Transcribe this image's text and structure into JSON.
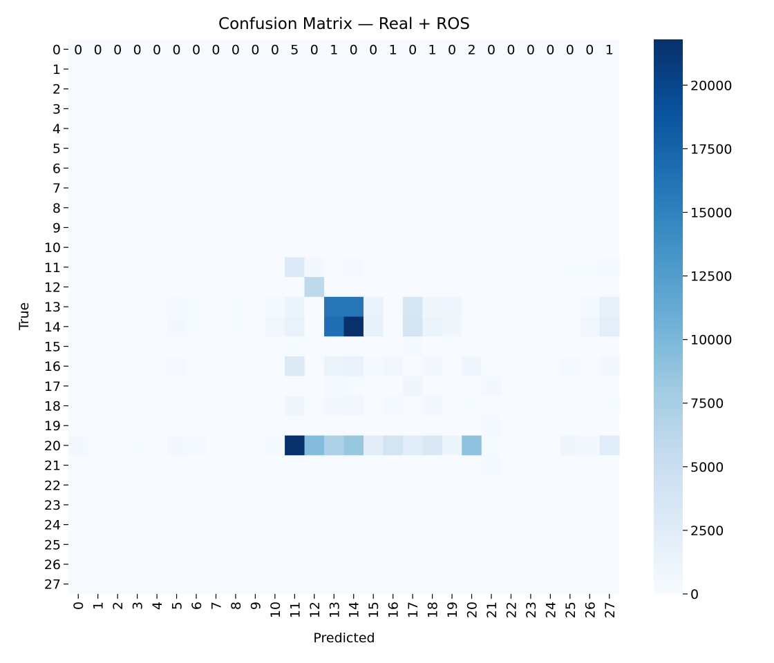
{
  "chart_data": {
    "type": "heatmap",
    "title": "Confusion Matrix — Real + ROS",
    "xlabel": "Predicted",
    "ylabel": "True",
    "x_ticks": [
      "0",
      "1",
      "2",
      "3",
      "4",
      "5",
      "6",
      "7",
      "8",
      "9",
      "10",
      "11",
      "12",
      "13",
      "14",
      "15",
      "16",
      "17",
      "18",
      "19",
      "20",
      "21",
      "22",
      "23",
      "24",
      "25",
      "26",
      "27"
    ],
    "y_ticks": [
      "0",
      "1",
      "2",
      "3",
      "4",
      "5",
      "6",
      "7",
      "8",
      "9",
      "10",
      "11",
      "12",
      "13",
      "14",
      "15",
      "16",
      "17",
      "18",
      "19",
      "20",
      "21",
      "22",
      "23",
      "24",
      "25",
      "26",
      "27"
    ],
    "colormap": "Blues",
    "color_range": [
      0,
      21800
    ],
    "colorbar_ticks": [
      "0",
      "2500",
      "5000",
      "7500",
      "10000",
      "12500",
      "15000",
      "17500",
      "20000"
    ],
    "annotations_row0": [
      "0",
      "0",
      "0",
      "0",
      "0",
      "0",
      "0",
      "0",
      "0",
      "0",
      "0",
      "5",
      "0",
      "1",
      "0",
      "0",
      "1",
      "0",
      "1",
      "0",
      "2",
      "0",
      "0",
      "0",
      "0",
      "0",
      "0",
      "1"
    ],
    "values": [
      [
        0,
        0,
        0,
        0,
        0,
        0,
        0,
        0,
        0,
        0,
        0,
        5,
        0,
        1,
        0,
        0,
        1,
        0,
        1,
        0,
        2,
        0,
        0,
        0,
        0,
        0,
        0,
        1
      ],
      [
        0,
        0,
        0,
        0,
        0,
        0,
        0,
        0,
        0,
        0,
        0,
        0,
        0,
        0,
        0,
        0,
        0,
        0,
        0,
        0,
        0,
        0,
        0,
        0,
        0,
        0,
        0,
        0
      ],
      [
        0,
        0,
        0,
        0,
        0,
        0,
        0,
        0,
        0,
        0,
        0,
        0,
        0,
        0,
        0,
        0,
        0,
        0,
        0,
        0,
        0,
        0,
        0,
        0,
        0,
        0,
        0,
        0
      ],
      [
        0,
        0,
        0,
        0,
        0,
        0,
        0,
        0,
        0,
        0,
        0,
        0,
        0,
        0,
        0,
        0,
        0,
        0,
        0,
        0,
        0,
        0,
        0,
        0,
        0,
        0,
        0,
        0
      ],
      [
        0,
        0,
        0,
        0,
        0,
        0,
        0,
        0,
        0,
        0,
        0,
        0,
        0,
        0,
        0,
        0,
        0,
        0,
        0,
        0,
        0,
        0,
        0,
        0,
        0,
        0,
        0,
        0
      ],
      [
        0,
        0,
        0,
        0,
        0,
        0,
        0,
        0,
        0,
        0,
        0,
        0,
        0,
        0,
        0,
        0,
        0,
        0,
        0,
        0,
        0,
        0,
        0,
        0,
        0,
        0,
        0,
        0
      ],
      [
        0,
        0,
        0,
        0,
        0,
        0,
        0,
        0,
        0,
        0,
        0,
        0,
        0,
        0,
        0,
        0,
        0,
        0,
        0,
        0,
        0,
        0,
        0,
        0,
        0,
        0,
        0,
        0
      ],
      [
        0,
        0,
        0,
        0,
        0,
        0,
        0,
        0,
        0,
        0,
        0,
        0,
        0,
        0,
        0,
        0,
        0,
        0,
        0,
        0,
        0,
        0,
        0,
        0,
        0,
        0,
        0,
        0
      ],
      [
        0,
        0,
        0,
        0,
        0,
        0,
        0,
        0,
        0,
        0,
        0,
        0,
        0,
        0,
        0,
        0,
        0,
        0,
        0,
        0,
        0,
        0,
        0,
        0,
        0,
        0,
        0,
        0
      ],
      [
        0,
        0,
        0,
        0,
        0,
        0,
        0,
        0,
        0,
        0,
        0,
        0,
        0,
        0,
        0,
        0,
        0,
        0,
        0,
        0,
        0,
        0,
        0,
        0,
        0,
        0,
        0,
        0
      ],
      [
        0,
        0,
        0,
        0,
        0,
        0,
        0,
        0,
        0,
        0,
        0,
        0,
        0,
        0,
        0,
        0,
        0,
        0,
        0,
        0,
        0,
        0,
        0,
        0,
        0,
        0,
        0,
        0
      ],
      [
        0,
        0,
        0,
        0,
        0,
        0,
        0,
        0,
        0,
        0,
        0,
        3000,
        500,
        0,
        300,
        0,
        0,
        0,
        0,
        0,
        0,
        0,
        0,
        0,
        0,
        200,
        200,
        300
      ],
      [
        0,
        0,
        0,
        200,
        0,
        0,
        0,
        0,
        0,
        0,
        0,
        0,
        6000,
        0,
        0,
        0,
        0,
        0,
        0,
        0,
        0,
        0,
        0,
        0,
        0,
        0,
        0,
        0
      ],
      [
        0,
        0,
        0,
        0,
        0,
        400,
        200,
        0,
        200,
        0,
        400,
        1100,
        0,
        16000,
        16000,
        1600,
        0,
        3500,
        900,
        1000,
        0,
        0,
        0,
        0,
        0,
        0,
        400,
        1700
      ],
      [
        0,
        0,
        0,
        0,
        0,
        500,
        200,
        0,
        200,
        0,
        600,
        1500,
        0,
        16500,
        21800,
        1700,
        0,
        3700,
        1200,
        900,
        0,
        0,
        0,
        0,
        0,
        0,
        600,
        2200
      ],
      [
        0,
        0,
        0,
        0,
        0,
        0,
        0,
        0,
        0,
        0,
        0,
        200,
        0,
        0,
        0,
        0,
        0,
        400,
        0,
        0,
        0,
        0,
        0,
        0,
        0,
        0,
        0,
        0
      ],
      [
        0,
        0,
        0,
        0,
        0,
        300,
        0,
        0,
        0,
        0,
        0,
        2900,
        0,
        1200,
        1500,
        400,
        600,
        0,
        700,
        0,
        800,
        0,
        0,
        0,
        0,
        300,
        0,
        500
      ],
      [
        0,
        0,
        0,
        0,
        0,
        0,
        0,
        0,
        0,
        0,
        0,
        0,
        0,
        300,
        200,
        0,
        0,
        900,
        0,
        200,
        0,
        500,
        0,
        0,
        0,
        0,
        0,
        0
      ],
      [
        0,
        0,
        0,
        0,
        0,
        0,
        0,
        0,
        0,
        0,
        0,
        900,
        0,
        500,
        700,
        0,
        300,
        0,
        500,
        0,
        200,
        0,
        0,
        0,
        0,
        0,
        0,
        200
      ],
      [
        0,
        0,
        0,
        0,
        0,
        0,
        0,
        0,
        0,
        0,
        0,
        0,
        0,
        0,
        0,
        0,
        0,
        0,
        0,
        0,
        0,
        400,
        0,
        0,
        0,
        0,
        0,
        0
      ],
      [
        500,
        0,
        0,
        200,
        0,
        500,
        300,
        0,
        0,
        0,
        300,
        21800,
        9500,
        7000,
        8500,
        2300,
        4000,
        2500,
        3200,
        1100,
        9000,
        200,
        0,
        0,
        0,
        900,
        500,
        2500
      ],
      [
        0,
        0,
        0,
        0,
        0,
        0,
        0,
        0,
        0,
        0,
        0,
        0,
        0,
        0,
        0,
        0,
        0,
        0,
        0,
        0,
        0,
        300,
        0,
        0,
        0,
        0,
        0,
        0
      ],
      [
        0,
        0,
        0,
        0,
        0,
        0,
        0,
        0,
        0,
        0,
        0,
        0,
        0,
        0,
        0,
        0,
        0,
        0,
        0,
        0,
        0,
        0,
        0,
        0,
        0,
        0,
        0,
        0
      ],
      [
        0,
        0,
        0,
        0,
        0,
        0,
        0,
        0,
        0,
        0,
        0,
        0,
        0,
        0,
        0,
        0,
        0,
        0,
        0,
        0,
        0,
        0,
        0,
        0,
        0,
        0,
        0,
        0
      ],
      [
        0,
        0,
        0,
        0,
        0,
        0,
        0,
        0,
        0,
        0,
        0,
        0,
        0,
        0,
        0,
        0,
        0,
        0,
        0,
        0,
        0,
        0,
        0,
        0,
        0,
        0,
        0,
        0
      ],
      [
        0,
        0,
        0,
        0,
        0,
        0,
        0,
        0,
        0,
        0,
        0,
        0,
        0,
        0,
        0,
        0,
        0,
        0,
        0,
        0,
        0,
        0,
        0,
        0,
        0,
        0,
        0,
        0
      ],
      [
        0,
        0,
        0,
        0,
        0,
        0,
        0,
        0,
        0,
        0,
        0,
        0,
        0,
        0,
        0,
        0,
        0,
        0,
        0,
        0,
        0,
        0,
        0,
        0,
        0,
        0,
        0,
        0
      ],
      [
        0,
        0,
        0,
        0,
        0,
        0,
        0,
        0,
        0,
        0,
        0,
        0,
        0,
        0,
        0,
        0,
        0,
        0,
        0,
        0,
        0,
        0,
        0,
        0,
        0,
        0,
        0,
        0
      ]
    ]
  }
}
